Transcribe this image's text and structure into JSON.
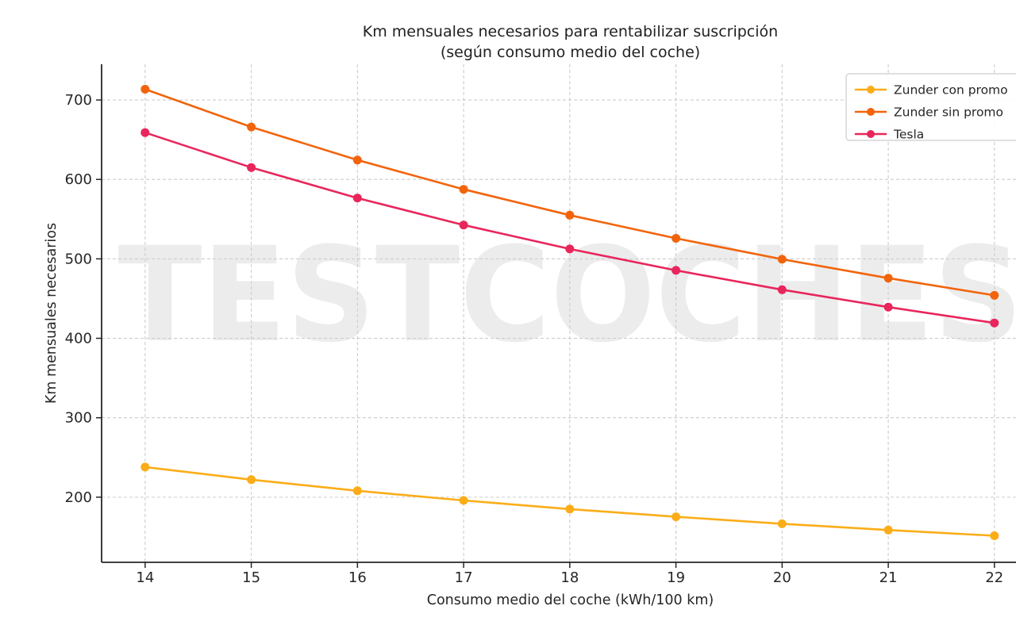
{
  "page": {
    "background": "#ffffff"
  },
  "chart_data": {
    "type": "line",
    "title": "Km mensuales necesarios para rentabilizar suscripción",
    "subtitle": "(según consumo medio del coche)",
    "xlabel": "Consumo medio del coche (kWh/100 km)",
    "ylabel": "Km mensuales necesarios",
    "x": [
      14,
      15,
      16,
      17,
      18,
      19,
      20,
      21,
      22
    ],
    "series": [
      {
        "name": "Zunder con promo",
        "color": "#FBAD18",
        "values": [
          237.9,
          222.0,
          208.1,
          195.9,
          185.0,
          175.3,
          166.5,
          158.6,
          151.4
        ]
      },
      {
        "name": "Zunder sin promo",
        "color": "#F2640C",
        "values": [
          713.6,
          666.0,
          624.4,
          587.6,
          555.0,
          525.8,
          499.5,
          475.7,
          454.1
        ]
      },
      {
        "name": "Tesla",
        "color": "#E8265C",
        "values": [
          658.9,
          615.0,
          576.6,
          542.6,
          512.5,
          485.5,
          461.2,
          439.3,
          419.3
        ]
      }
    ],
    "xticks": [
      "14",
      "15",
      "16",
      "17",
      "18",
      "19",
      "20",
      "21",
      "22"
    ],
    "yticks": [
      "200",
      "300",
      "400",
      "500",
      "600",
      "700"
    ],
    "xlim": [
      13.59,
      22.42
    ],
    "ylim": [
      118,
      745
    ],
    "grid": {
      "visible": true,
      "color": "#cccccc",
      "dash": "4 3"
    },
    "legend": {
      "position": "upper right",
      "items": [
        "Zunder con promo",
        "Zunder sin promo",
        "Tesla"
      ]
    },
    "watermark": {
      "text": "TESTCOCHES",
      "color": "#ececec"
    },
    "text_color": "#262626",
    "spine_color": "#262626",
    "legend_border_color": "#cccccc"
  }
}
